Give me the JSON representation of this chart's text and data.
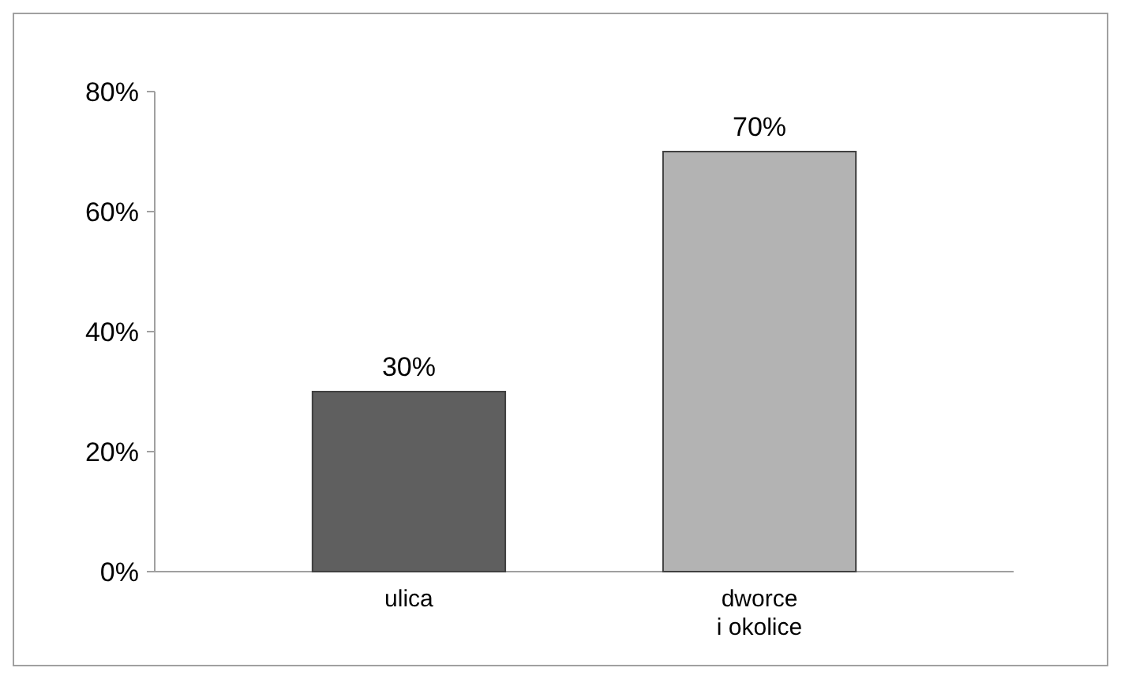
{
  "chart_data": {
    "type": "bar",
    "categories": [
      "ulica",
      "dworce\ni okolice"
    ],
    "values": [
      30,
      70
    ],
    "colors": [
      "#5f5f5f",
      "#b3b3b3"
    ],
    "value_labels": [
      "30%",
      "70%"
    ],
    "ylim": [
      0,
      80
    ],
    "yticks": [
      {
        "value": 0,
        "label": "0%"
      },
      {
        "value": 20,
        "label": "20%"
      },
      {
        "value": 40,
        "label": "40%"
      },
      {
        "value": 60,
        "label": "60%"
      },
      {
        "value": 80,
        "label": "80%"
      }
    ],
    "grid": false
  }
}
